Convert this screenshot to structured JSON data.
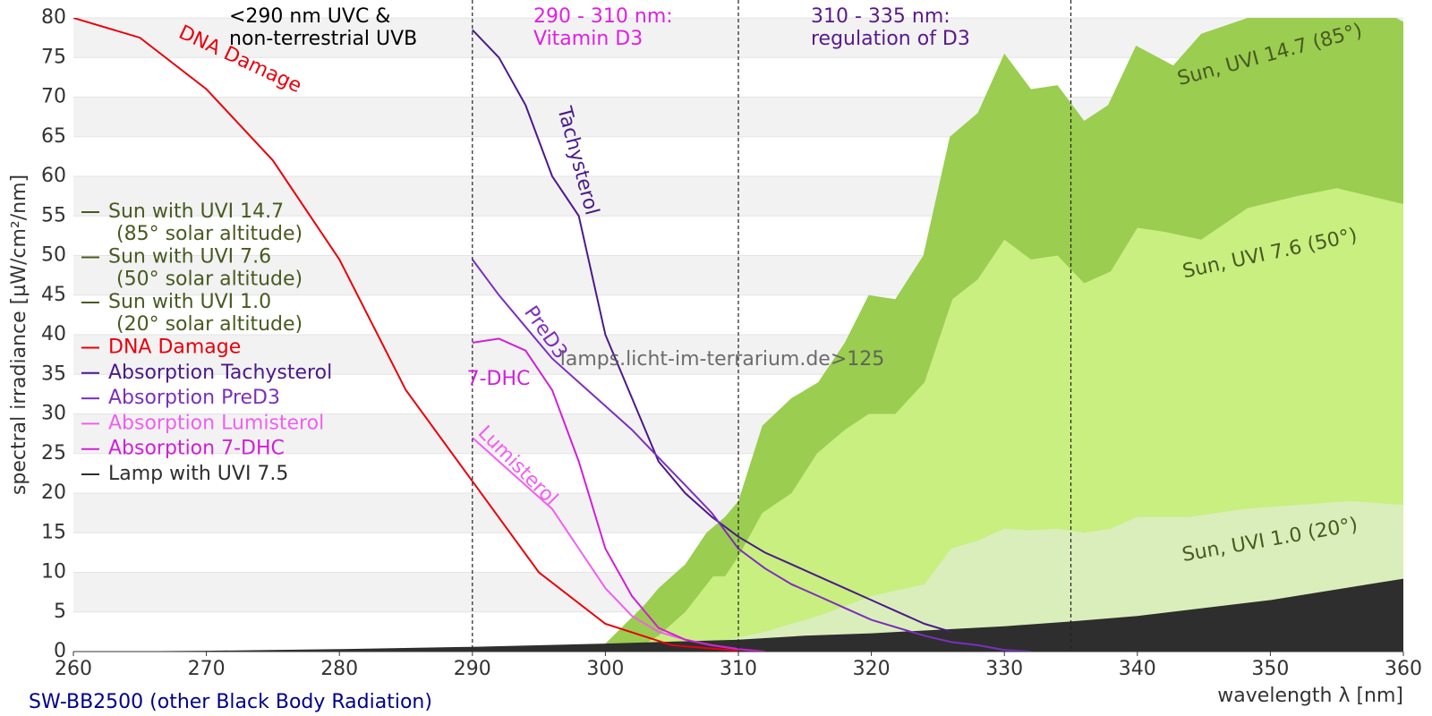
{
  "chart_data": {
    "type": "line",
    "xlabel": "wavelength λ [nm]",
    "ylabel": "spectral irradiance [µW/cm²/nm]",
    "xlim": [
      260,
      360
    ],
    "xticks": [
      260,
      270,
      280,
      290,
      300,
      310,
      320,
      330,
      340,
      350,
      360
    ],
    "ylim": [
      0,
      80
    ],
    "yticks": [
      0,
      5,
      10,
      15,
      20,
      25,
      30,
      35,
      40,
      45,
      50,
      55,
      60,
      65,
      70,
      75,
      80
    ],
    "grid": true,
    "legend": "left",
    "vlines": [
      290,
      310,
      335
    ],
    "annotations": [
      {
        "lines": [
          "<290 nm UVC &",
          "non-terrestrial UVB"
        ],
        "color": "#000000"
      },
      {
        "lines": [
          "290 - 310 nm:",
          "Vitamin D3"
        ],
        "color": "#e020e0"
      },
      {
        "lines": [
          "310 - 335 nm:",
          "regulation of D3"
        ],
        "color": "#5a1a8a"
      }
    ],
    "watermark": "lamps.licht-im-terrarium.de>125",
    "footer": "SW-BB2500 (other Black Body Radiation)",
    "series": [
      {
        "name": "Sun with UVI 14.7",
        "legend_subtitle": "(85° solar altitude)",
        "label": "Sun, UVI 14.7 (85°)",
        "type": "area",
        "color": "#9acd50",
        "label_color": "#485a20",
        "x": [
          298,
          300,
          303,
          304,
          306,
          307.6,
          309,
          310,
          311.8,
          314,
          316,
          318,
          319.8,
          321.8,
          323.9,
          325.9,
          328,
          330,
          332,
          334,
          336,
          337.8,
          339.9,
          342.7,
          344.8,
          348.3,
          352,
          355,
          360
        ],
        "values": [
          0,
          1,
          6,
          8,
          11,
          15,
          17,
          19,
          28.5,
          32,
          34,
          39,
          45,
          44.5,
          50,
          65,
          68,
          75.5,
          71,
          71.5,
          67,
          69,
          76.5,
          74,
          78,
          80,
          82,
          84,
          79.5
        ]
      },
      {
        "name": "Sun with UVI 7.6",
        "legend_subtitle": "(50° solar altitude)",
        "label": "Sun, UVI 7.6 (50°)",
        "type": "area",
        "color": "#c8ef80",
        "label_color": "#485a20",
        "x": [
          302,
          304,
          306,
          308.1,
          309,
          310,
          311.8,
          314,
          315.9,
          318,
          319.8,
          321.8,
          324,
          326.1,
          328,
          330,
          332,
          334,
          336,
          338,
          340,
          342,
          344.8,
          348.3,
          352,
          355,
          360
        ],
        "values": [
          0,
          2,
          5,
          9.5,
          9.5,
          12,
          17.5,
          20,
          25,
          28,
          30,
          30,
          34,
          44.5,
          47,
          52,
          49.5,
          50,
          46.5,
          48,
          53.5,
          53,
          52,
          56,
          57.5,
          58.5,
          56.5
        ]
      },
      {
        "name": "Sun with UVI 1.0",
        "legend_subtitle": "(20° solar altitude)",
        "label": "Sun, UVI 1.0 (20°)",
        "type": "area",
        "color": "#daeebb",
        "label_color": "#485a20",
        "x": [
          304,
          308,
          312,
          316,
          320,
          324,
          326,
          328,
          330,
          332,
          334,
          336,
          338,
          340,
          344,
          348,
          352,
          356,
          360
        ],
        "values": [
          0,
          1,
          2.5,
          4.5,
          7,
          8.5,
          13,
          14,
          15.5,
          15.3,
          15.5,
          15,
          15.5,
          17,
          17,
          18,
          18.5,
          19,
          18.5
        ]
      },
      {
        "name": "DNA Damage",
        "label": "DNA Damage",
        "type": "line",
        "color": "#e8000b",
        "x": [
          260,
          265,
          270,
          275,
          280,
          285,
          290,
          295,
          300,
          305,
          310
        ],
        "values": [
          80,
          77.5,
          71,
          62,
          49.5,
          33,
          21.5,
          10,
          3.5,
          0.8,
          0.1
        ]
      },
      {
        "name": "Absorption Tachysterol",
        "label": "Tachysterol",
        "type": "line",
        "color": "#4b1a8a",
        "x": [
          290,
          292,
          294,
          296,
          298,
          300,
          302,
          304,
          306,
          308,
          310,
          312,
          314,
          316,
          318,
          320,
          322,
          324,
          326
        ],
        "values": [
          78.5,
          75,
          69,
          60,
          55,
          40,
          32,
          24,
          20,
          17,
          14.5,
          12.5,
          11,
          9.5,
          8,
          6.5,
          5,
          3.5,
          2.5
        ]
      },
      {
        "name": "Absorption PreD3",
        "label": "PreD3",
        "type": "line",
        "color": "#7b2fbe",
        "x": [
          290,
          292,
          294,
          296,
          298,
          300,
          302,
          304,
          306,
          308,
          310,
          312,
          314,
          316,
          318,
          320,
          322,
          324,
          326,
          328,
          330,
          332
        ],
        "values": [
          49.5,
          45,
          41,
          37,
          34,
          31,
          28,
          24.5,
          21,
          17.5,
          13,
          10.5,
          8.5,
          7,
          5.5,
          4,
          3,
          2,
          1.2,
          0.8,
          0.2,
          0
        ]
      },
      {
        "name": "Absorption Lumisterol",
        "label": "Lumisterol",
        "type": "line",
        "color": "#f060f0",
        "x": [
          290,
          292,
          294,
          296,
          298,
          300,
          302,
          304,
          306,
          308,
          310
        ],
        "values": [
          27,
          24,
          21,
          18,
          13,
          8,
          4.5,
          2.5,
          1.5,
          0.8,
          0.3
        ]
      },
      {
        "name": "Absorption 7-DHC",
        "label": "7-DHC",
        "type": "line",
        "color": "#d020d8",
        "x": [
          290,
          292,
          294,
          296,
          298,
          300,
          302,
          304,
          306,
          308,
          310,
          312
        ],
        "values": [
          39,
          39.5,
          38,
          33,
          24,
          13,
          7,
          3,
          1.5,
          0.8,
          0.3,
          0
        ]
      },
      {
        "name": "Lamp with UVI 7.5",
        "type": "area",
        "color": "#2e2e2e",
        "x": [
          262.5,
          270,
          280,
          290,
          300,
          310,
          315,
          320,
          330,
          335,
          340,
          350,
          360
        ],
        "values": [
          0,
          0.1,
          0.3,
          0.6,
          1,
          1.5,
          2,
          2.3,
          3.2,
          3.8,
          4.5,
          6.5,
          9.2
        ]
      }
    ]
  }
}
